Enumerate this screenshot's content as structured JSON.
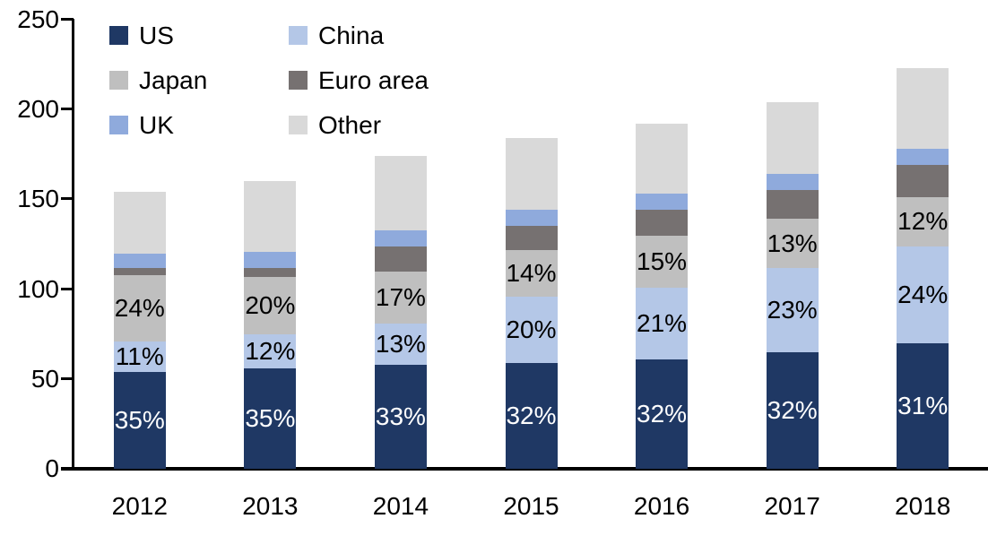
{
  "chart_data": {
    "type": "bar",
    "variant": "stacked-column",
    "title": "",
    "xlabel": "",
    "ylabel": "",
    "categories": [
      "2012",
      "2013",
      "2014",
      "2015",
      "2016",
      "2017",
      "2018"
    ],
    "series": [
      {
        "name": "US",
        "color": "#1F3864",
        "values": [
          54,
          56,
          58,
          59,
          61,
          65,
          70
        ],
        "labels": [
          "35%",
          "35%",
          "33%",
          "32%",
          "32%",
          "32%",
          "31%"
        ],
        "label_color": "#FFFFFF"
      },
      {
        "name": "China",
        "color": "#B4C7E7",
        "values": [
          17,
          19,
          23,
          37,
          40,
          47,
          54
        ],
        "labels": [
          "11%",
          "12%",
          "13%",
          "20%",
          "21%",
          "23%",
          "24%"
        ],
        "label_color": "#000000"
      },
      {
        "name": "Japan",
        "color": "#BFBFBF",
        "values": [
          37,
          32,
          29,
          26,
          29,
          27,
          27
        ],
        "labels": [
          "24%",
          "20%",
          "17%",
          "14%",
          "15%",
          "13%",
          "12%"
        ],
        "label_color": "#000000"
      },
      {
        "name": "Euro area",
        "color": "#767171",
        "values": [
          4,
          5,
          14,
          13,
          14,
          16,
          18
        ],
        "labels": null,
        "label_color": null
      },
      {
        "name": "UK",
        "color": "#8FAADC",
        "values": [
          8,
          9,
          9,
          9,
          9,
          9,
          9
        ],
        "labels": null,
        "label_color": null
      },
      {
        "name": "Other",
        "color": "#D9D9D9",
        "values": [
          34,
          39,
          41,
          40,
          39,
          40,
          45
        ],
        "labels": null,
        "label_color": null
      }
    ],
    "totals": [
      154,
      160,
      174,
      184,
      192,
      204,
      223
    ],
    "ylim": [
      0,
      250
    ],
    "yticks": [
      0,
      50,
      100,
      150,
      200,
      250
    ],
    "grid": false,
    "legend": {
      "position": "top-left",
      "columns": 2,
      "order": [
        "US",
        "China",
        "Japan",
        "Euro area",
        "UK",
        "Other"
      ]
    },
    "axis_color": "#000000",
    "background_color": "#FFFFFF"
  }
}
